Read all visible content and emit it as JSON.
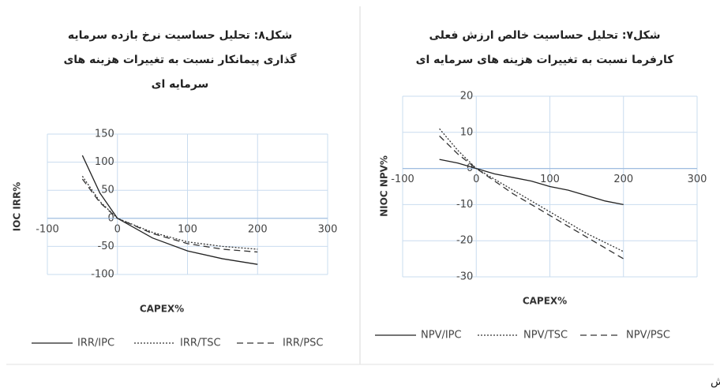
{
  "chart_data": [
    {
      "type": "line",
      "title": [
        "شکل۸: تحلیل حساسیت نرخ بازده سرمایه",
        "گذاری پیمانکار نسبت به تغییرات هزینه های",
        "سرمایه ای"
      ],
      "x_label": "CAPEX%",
      "y_label": "IOC IRR%",
      "x": [
        -50,
        -25,
        0,
        50,
        100,
        150,
        200
      ],
      "series": [
        {
          "name": "IRR/IPC",
          "color": "#222222",
          "style": "solid",
          "values": [
            112,
            45,
            0,
            -35,
            -58,
            -72,
            -82
          ]
        },
        {
          "name": "IRR/TSC",
          "color": "#333333",
          "style": "dotted",
          "values": [
            75,
            30,
            0,
            -25,
            -42,
            -50,
            -55
          ]
        },
        {
          "name": "IRR/PSC",
          "color": "#333333",
          "style": "dashed",
          "values": [
            70,
            28,
            0,
            -27,
            -45,
            -55,
            -60
          ]
        }
      ],
      "xlim": [
        -100,
        300
      ],
      "xticks": [
        -100,
        0,
        100,
        200,
        300
      ],
      "ylim": [
        -100,
        150
      ],
      "yticks": [
        -100,
        -50,
        0,
        50,
        100,
        150
      ],
      "grid": true
    },
    {
      "type": "line",
      "title": [
        "شکل۷: تحلیل حساسیت خالص ارزش فعلی",
        "کارفرما نسبت به تغییرات هزینه های سرمایه ای"
      ],
      "x_label": "CAPEX%",
      "y_label": "NIOC NPV%",
      "x": [
        -50,
        -25,
        0,
        25,
        50,
        75,
        100,
        125,
        150,
        175,
        200
      ],
      "series": [
        {
          "name": "NPV/IPC",
          "color": "#222222",
          "style": "solid",
          "values": [
            2.5,
            1.5,
            0,
            -1.5,
            -2.5,
            -3.5,
            -5,
            -6,
            -7.5,
            -9,
            -10
          ]
        },
        {
          "name": "NPV/TSC",
          "color": "#333333",
          "style": "dotted",
          "values": [
            11,
            5,
            0,
            -3,
            -6,
            -9,
            -12,
            -15,
            -18,
            -20.5,
            -23
          ]
        },
        {
          "name": "NPV/PSC",
          "color": "#333333",
          "style": "dashed",
          "values": [
            9,
            4,
            0,
            -3.5,
            -7,
            -10,
            -13,
            -16,
            -19,
            -22,
            -25
          ]
        }
      ],
      "xlim": [
        -100,
        300
      ],
      "xticks": [
        -100,
        0,
        100,
        200,
        300
      ],
      "ylim": [
        -30,
        20
      ],
      "yticks": [
        -30,
        -20,
        -10,
        0,
        10,
        20
      ],
      "grid": true
    }
  ],
  "source": "مأخذ: یافته های پژوهش"
}
